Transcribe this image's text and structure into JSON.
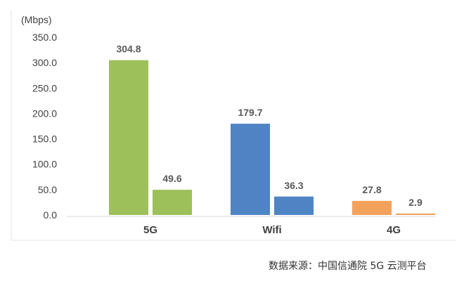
{
  "chart_data": {
    "type": "bar",
    "ylabel": "(Mbps)",
    "ylim": [
      0,
      350
    ],
    "yticks": [
      "0.0",
      "50.0",
      "100.0",
      "150.0",
      "200.0",
      "250.0",
      "300.0",
      "350.0"
    ],
    "categories": [
      "5G",
      "Wifi",
      "4G"
    ],
    "series": [
      {
        "values": [
          304.8,
          179.7,
          27.8
        ]
      },
      {
        "values": [
          49.6,
          36.3,
          2.9
        ]
      }
    ],
    "bar_colors": [
      "#9DC05A",
      "#4E84C4",
      "#F2A25A"
    ],
    "data_labels": [
      [
        "304.8",
        "49.6"
      ],
      [
        "179.7",
        "36.3"
      ],
      [
        "27.8",
        "2.9"
      ]
    ],
    "grid": false
  },
  "source_note": "数据来源：中国信通院 5G 云测平台"
}
